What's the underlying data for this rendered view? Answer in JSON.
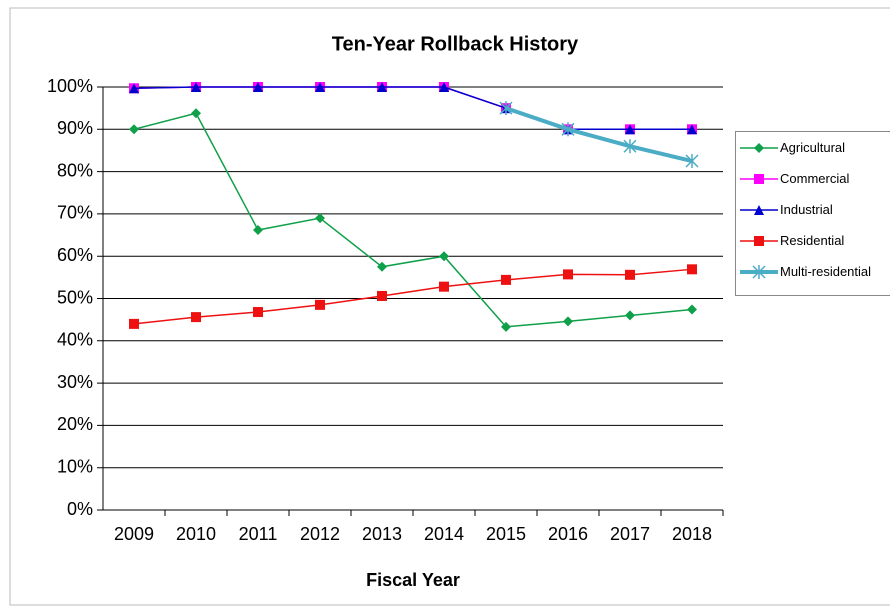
{
  "chart_data": {
    "type": "line",
    "title": "Ten-Year Rollback History",
    "x_label": "Fiscal Year",
    "categories": [
      "2009",
      "2010",
      "2011",
      "2012",
      "2013",
      "2014",
      "2015",
      "2016",
      "2017",
      "2018"
    ],
    "ylim": [
      0,
      100
    ],
    "yticks": [
      {
        "value": 0,
        "label": "0%"
      },
      {
        "value": 10,
        "label": "10%"
      },
      {
        "value": 20,
        "label": "20%"
      },
      {
        "value": 30,
        "label": "30%"
      },
      {
        "value": 40,
        "label": "40%"
      },
      {
        "value": 50,
        "label": "50%"
      },
      {
        "value": 60,
        "label": "60%"
      },
      {
        "value": 70,
        "label": "70%"
      },
      {
        "value": 80,
        "label": "80%"
      },
      {
        "value": 90,
        "label": "90%"
      },
      {
        "value": 100,
        "label": "100%"
      }
    ],
    "grid": true,
    "legend": "right",
    "series": [
      {
        "name": "Agricultural",
        "color": "#0fa04a",
        "marker": "diamond",
        "values": [
          90,
          93.8,
          66.2,
          69,
          57.5,
          60,
          43.3,
          44.6,
          46,
          47.4
        ]
      },
      {
        "name": "Commercial",
        "color": "#ff00ff",
        "marker": "square",
        "values": [
          99.7,
          100,
          100,
          100,
          100,
          100,
          95,
          90,
          90,
          90
        ]
      },
      {
        "name": "Industrial",
        "color": "#0000cc",
        "marker": "triangle",
        "values": [
          99.7,
          100,
          100,
          100,
          100,
          100,
          95,
          90,
          90,
          90
        ]
      },
      {
        "name": "Residential",
        "color": "#ee1111",
        "marker": "square",
        "values": [
          44,
          45.6,
          46.8,
          48.5,
          50.6,
          52.8,
          54.4,
          55.7,
          55.6,
          56.9
        ]
      },
      {
        "name": "Multi-residential",
        "color": "#4bacc6",
        "marker": "star",
        "width": 4,
        "values": [
          null,
          null,
          null,
          null,
          null,
          null,
          95,
          90,
          86,
          82.5
        ]
      }
    ]
  }
}
